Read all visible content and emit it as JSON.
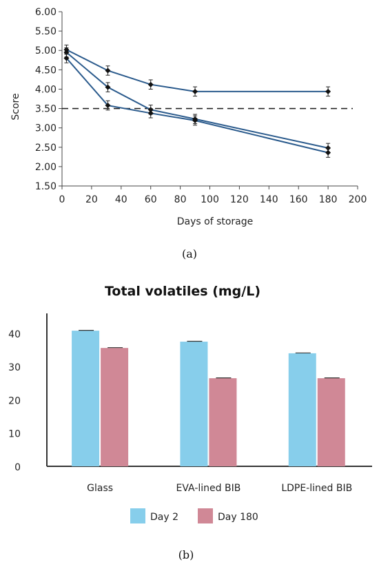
{
  "chart_data": [
    {
      "type": "line",
      "caption": "(a)",
      "xlabel": "Days of storage",
      "ylabel": "Score",
      "xlim": [
        0,
        200
      ],
      "ylim": [
        1.5,
        6.0
      ],
      "x_ticks": [
        "0",
        "20",
        "40",
        "60",
        "80",
        "100",
        "120",
        "140",
        "160",
        "180",
        "200"
      ],
      "y_ticks": [
        "1.50",
        "2.00",
        "2.50",
        "3.00",
        "3.50",
        "4.00",
        "4.50",
        "5.00",
        "5.50",
        "6.00"
      ],
      "reference_line": {
        "y": 3.5,
        "style": "dashed"
      },
      "series": [
        {
          "x": [
            3,
            31,
            60,
            90,
            180
          ],
          "y": [
            5.02,
            4.48,
            4.12,
            3.94,
            3.94
          ],
          "err": [
            0.12,
            0.12,
            0.12,
            0.12,
            0.12
          ]
        },
        {
          "x": [
            3,
            31,
            60,
            90,
            180
          ],
          "y": [
            4.95,
            4.05,
            3.47,
            3.23,
            2.48
          ],
          "err": [
            0.12,
            0.12,
            0.12,
            0.12,
            0.12
          ]
        },
        {
          "x": [
            3,
            31,
            60,
            90,
            180
          ],
          "y": [
            4.8,
            3.58,
            3.38,
            3.19,
            2.36
          ],
          "err": [
            0.12,
            0.12,
            0.12,
            0.12,
            0.12
          ]
        }
      ],
      "color": "#2a5a8c",
      "grid": false
    },
    {
      "type": "bar",
      "caption": "(b)",
      "title": "Total volatiles (mg/L)",
      "categories": [
        "Glass",
        "EVA-lined BIB",
        "LDPE-lined BIB"
      ],
      "y_ticks": [
        "0",
        "10",
        "20",
        "30",
        "40"
      ],
      "ylim": [
        0,
        46
      ],
      "series": [
        {
          "name": "Day 2",
          "color": "#87ceeb",
          "values": [
            40.8,
            37.5,
            34.0
          ]
        },
        {
          "name": "Day 180",
          "color": "#d08896",
          "values": [
            35.6,
            26.5,
            26.5
          ]
        }
      ],
      "legend": "bottom",
      "grid": false
    }
  ]
}
